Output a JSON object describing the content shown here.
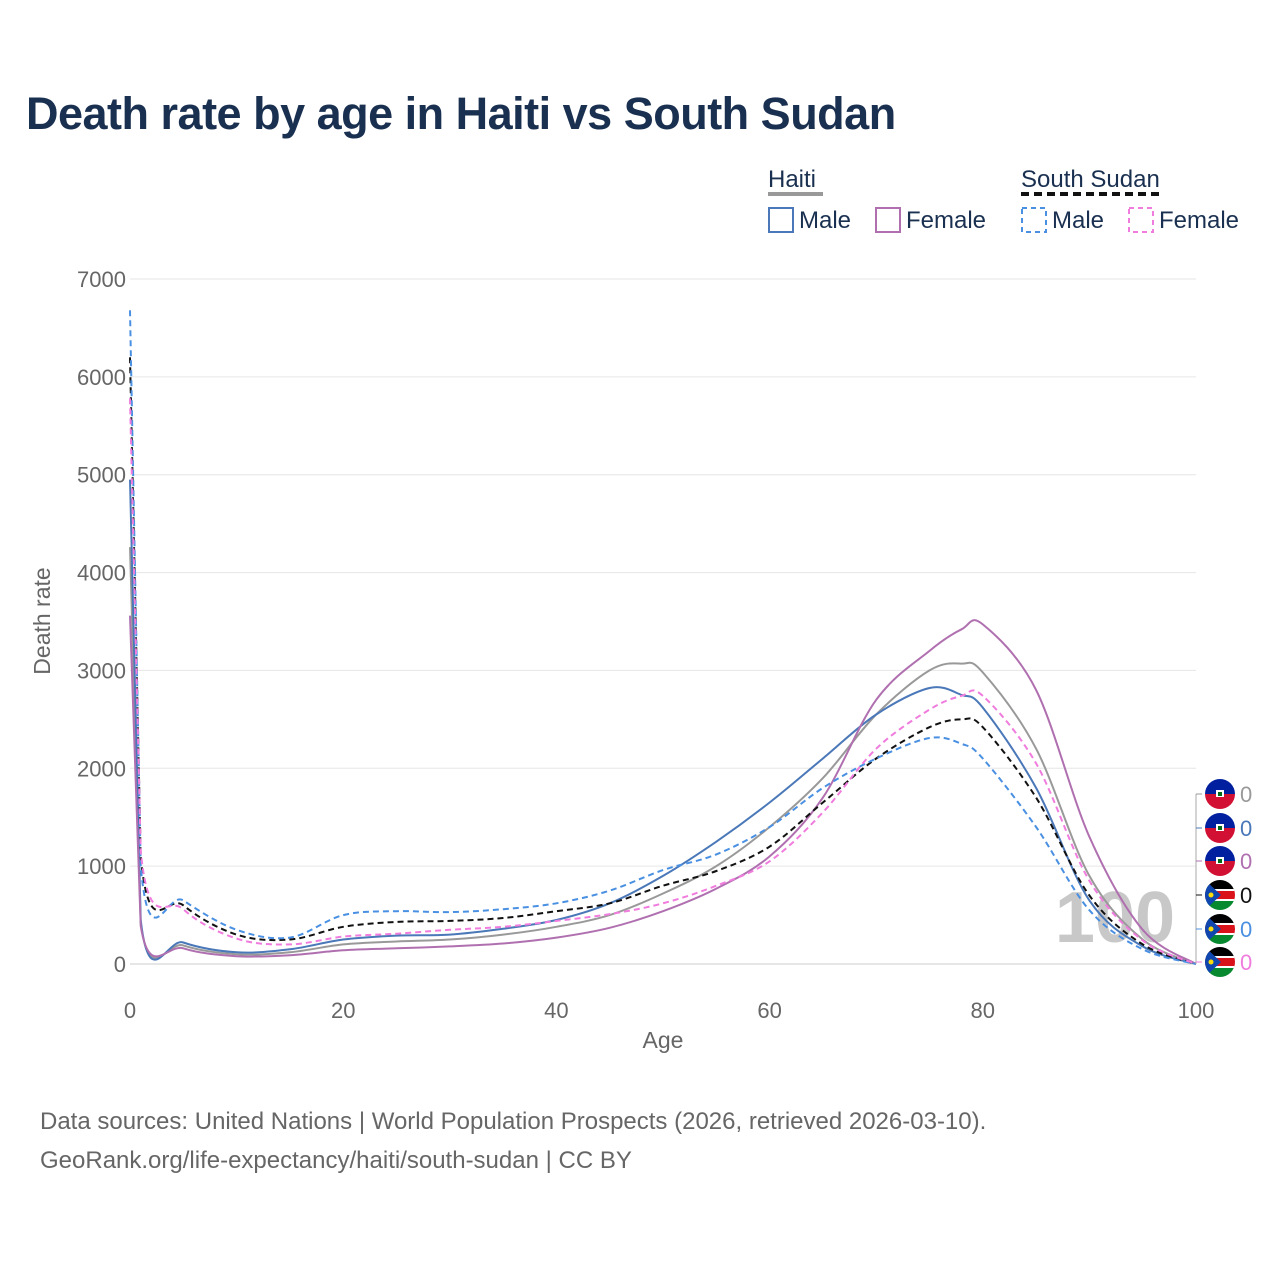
{
  "title": "Death rate by age in Haiti vs South Sudan",
  "footer": {
    "line1": "Data sources: United Nations | World Population Prospects (2026, retrieved 2026-03-10).",
    "line2": "GeoRank.org/life-expectancy/haiti/south-sudan | CC BY"
  },
  "legend": {
    "haiti_label": "Haiti",
    "south_sudan_label": "South Sudan",
    "male_label": "Male",
    "female_label": "Female"
  },
  "watermark": "100",
  "chart_data": {
    "type": "line",
    "title": "Death rate by age in Haiti vs South Sudan",
    "xlabel": "Age",
    "ylabel": "Death rate",
    "xlim": [
      0,
      100
    ],
    "ylim": [
      0,
      7000
    ],
    "x_ticks": [
      "0",
      "20",
      "40",
      "60",
      "80",
      "100"
    ],
    "y_ticks": [
      "0",
      "1000",
      "2000",
      "3000",
      "4000",
      "5000",
      "6000",
      "7000"
    ],
    "grid": true,
    "legend_position": "top-right",
    "x": [
      0,
      1,
      5,
      10,
      15,
      20,
      25,
      30,
      35,
      40,
      45,
      50,
      55,
      60,
      65,
      70,
      75,
      78,
      80,
      85,
      90,
      95,
      100
    ],
    "series": [
      {
        "name": "Haiti Total",
        "country": "Haiti",
        "sex": "Total",
        "color": "#999999",
        "dash": "solid",
        "end_label": "0",
        "values": [
          4260,
          420,
          190,
          100,
          120,
          200,
          230,
          250,
          300,
          380,
          500,
          720,
          1000,
          1400,
          1900,
          2550,
          3000,
          3070,
          2980,
          2200,
          900,
          250,
          0
        ]
      },
      {
        "name": "Haiti Male",
        "country": "Haiti",
        "sex": "Male",
        "color": "#4a78b8",
        "dash": "solid",
        "end_label": "0",
        "values": [
          4950,
          450,
          220,
          120,
          150,
          250,
          290,
          300,
          360,
          450,
          620,
          900,
          1250,
          1650,
          2100,
          2550,
          2820,
          2750,
          2620,
          1800,
          650,
          180,
          0
        ]
      },
      {
        "name": "Haiti Female",
        "country": "Haiti",
        "sex": "Female",
        "color": "#b070b0",
        "dash": "solid",
        "end_label": "0",
        "values": [
          3560,
          390,
          160,
          80,
          90,
          140,
          160,
          180,
          210,
          270,
          370,
          540,
          770,
          1100,
          1700,
          2700,
          3200,
          3420,
          3470,
          2800,
          1300,
          350,
          0
        ]
      },
      {
        "name": "South Sudan Total",
        "country": "South Sudan",
        "sex": "Total",
        "color": "#111111",
        "dash": "dashed",
        "end_label": "0",
        "values": [
          6200,
          1100,
          600,
          300,
          250,
          380,
          430,
          440,
          470,
          540,
          620,
          800,
          950,
          1200,
          1650,
          2100,
          2420,
          2500,
          2420,
          1700,
          700,
          200,
          0
        ]
      },
      {
        "name": "South Sudan Male",
        "country": "South Sudan",
        "sex": "Male",
        "color": "#4a90e2",
        "dash": "dashed",
        "end_label": "0",
        "values": [
          6680,
          1000,
          650,
          350,
          270,
          500,
          540,
          530,
          560,
          620,
          750,
          960,
          1120,
          1400,
          1800,
          2100,
          2310,
          2250,
          2100,
          1400,
          550,
          150,
          0
        ]
      },
      {
        "name": "South Sudan Female",
        "country": "South Sudan",
        "sex": "Female",
        "color": "#f07cde",
        "dash": "dashed",
        "end_label": "0",
        "values": [
          5780,
          1150,
          560,
          260,
          200,
          280,
          310,
          350,
          380,
          440,
          510,
          620,
          800,
          1050,
          1550,
          2200,
          2600,
          2740,
          2740,
          2050,
          850,
          240,
          0
        ]
      }
    ]
  }
}
